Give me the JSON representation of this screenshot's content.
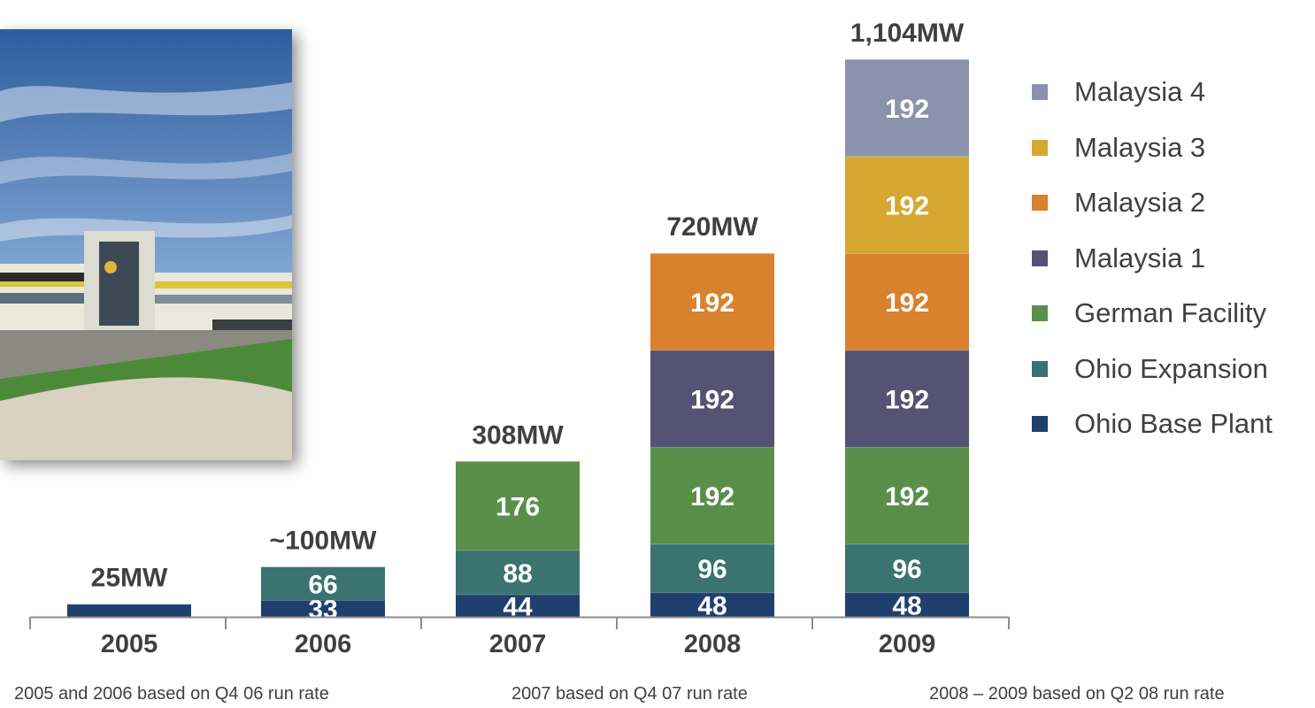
{
  "chart_data": {
    "type": "bar",
    "stacked": true,
    "categories": [
      "2005",
      "2006",
      "2007",
      "2008",
      "2009"
    ],
    "totals_labels": [
      "25MW",
      "~100MW",
      "308MW",
      "720MW",
      "1,104MW"
    ],
    "series": [
      {
        "name": "Ohio Base Plant",
        "color": "#1f3f6e",
        "values": [
          25,
          33,
          44,
          48,
          48
        ],
        "value_labels": [
          "",
          "33",
          "44",
          "48",
          "48"
        ]
      },
      {
        "name": "Ohio Expansion",
        "color": "#3a7370",
        "values": [
          0,
          66,
          88,
          96,
          96
        ],
        "value_labels": [
          "",
          "66",
          "88",
          "96",
          "96"
        ]
      },
      {
        "name": "German Facility",
        "color": "#5a8f4a",
        "values": [
          0,
          0,
          176,
          192,
          192
        ],
        "value_labels": [
          "",
          "",
          "176",
          "192",
          "192"
        ]
      },
      {
        "name": "Malaysia 1",
        "color": "#555273",
        "values": [
          0,
          0,
          0,
          192,
          192
        ],
        "value_labels": [
          "",
          "",
          "",
          "192",
          "192"
        ]
      },
      {
        "name": "Malaysia 2",
        "color": "#d9812c",
        "values": [
          0,
          0,
          0,
          192,
          192
        ],
        "value_labels": [
          "",
          "",
          "",
          "192",
          "192"
        ]
      },
      {
        "name": "Malaysia 3",
        "color": "#d6a832",
        "values": [
          0,
          0,
          0,
          0,
          192
        ],
        "value_labels": [
          "",
          "",
          "",
          "",
          "192"
        ]
      },
      {
        "name": "Malaysia 4",
        "color": "#8a93ab",
        "values": [
          0,
          0,
          0,
          0,
          192
        ],
        "value_labels": [
          "",
          "",
          "",
          "",
          "192"
        ]
      }
    ],
    "legend_position": "right",
    "grid": false
  },
  "notes": [
    "2005 and 2006 based on Q4 06 run rate",
    "2007  based on Q4 07 run rate",
    "2008 – 2009 based on Q2 08 run rate"
  ],
  "photo_icon": "factory-building-photo"
}
